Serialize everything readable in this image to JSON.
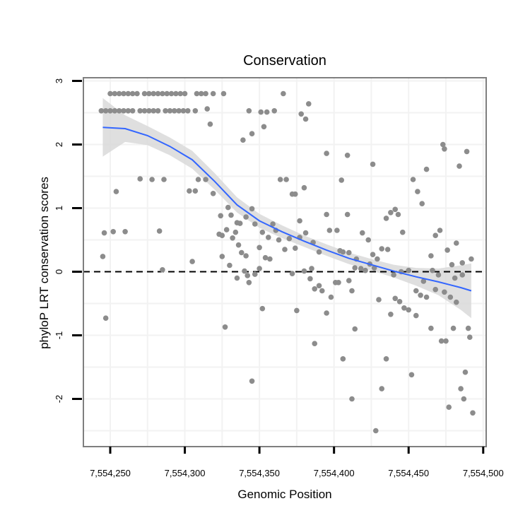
{
  "chart_data": {
    "type": "scatter",
    "title": "Conservation",
    "xlabel": "Genomic Position",
    "ylabel": "phyloP LRT conservation scores",
    "xlim": [
      7554232,
      7554502
    ],
    "ylim": [
      -2.75,
      3.05
    ],
    "x_ticks": [
      7554250,
      7554300,
      7554350,
      7554400,
      7554450,
      7554500
    ],
    "x_tick_labels": [
      "7,554,250",
      "7,554,300",
      "7,554,350",
      "7,554,400",
      "7,554,450",
      "7,554,500"
    ],
    "y_ticks": [
      3,
      2,
      1,
      0,
      -1,
      -2
    ],
    "y_tick_labels": [
      "3",
      "2",
      "1",
      "0",
      "-1",
      "-2"
    ],
    "grid": true,
    "reference_line": {
      "y": 0,
      "style": "dashed",
      "color": "#000000"
    },
    "colors": {
      "points": "#8c8c8c",
      "smooth": "#3366ff",
      "ribbon": "#d9d9d9",
      "grid": "#f2f2f2",
      "frame": "#7f7f7f"
    },
    "series": [
      {
        "name": "scores",
        "points": [
          [
            7554244,
            2.53
          ],
          [
            7554247,
            2.53
          ],
          [
            7554250,
            2.53
          ],
          [
            7554253,
            2.53
          ],
          [
            7554256,
            2.53
          ],
          [
            7554259,
            2.53
          ],
          [
            7554262,
            2.53
          ],
          [
            7554265,
            2.53
          ],
          [
            7554270,
            2.53
          ],
          [
            7554273,
            2.53
          ],
          [
            7554276,
            2.53
          ],
          [
            7554279,
            2.53
          ],
          [
            7554282,
            2.53
          ],
          [
            7554287,
            2.53
          ],
          [
            7554290,
            2.53
          ],
          [
            7554293,
            2.53
          ],
          [
            7554296,
            2.53
          ],
          [
            7554299,
            2.53
          ],
          [
            7554302,
            2.53
          ],
          [
            7554307,
            2.53
          ],
          [
            7554343,
            2.53
          ],
          [
            7554351,
            2.51
          ],
          [
            7554355,
            2.51
          ],
          [
            7554360,
            2.53
          ],
          [
            7554250,
            2.8
          ],
          [
            7554253,
            2.8
          ],
          [
            7554256,
            2.8
          ],
          [
            7554259,
            2.8
          ],
          [
            7554262,
            2.8
          ],
          [
            7554265,
            2.8
          ],
          [
            7554268,
            2.8
          ],
          [
            7554273,
            2.8
          ],
          [
            7554276,
            2.8
          ],
          [
            7554279,
            2.8
          ],
          [
            7554282,
            2.8
          ],
          [
            7554285,
            2.8
          ],
          [
            7554288,
            2.8
          ],
          [
            7554291,
            2.8
          ],
          [
            7554294,
            2.8
          ],
          [
            7554297,
            2.8
          ],
          [
            7554300,
            2.8
          ],
          [
            7554308,
            2.8
          ],
          [
            7554311,
            2.8
          ],
          [
            7554314,
            2.8
          ],
          [
            7554319,
            2.8
          ],
          [
            7554326,
            2.8
          ],
          [
            7554366,
            2.8
          ],
          [
            7554315,
            2.56
          ],
          [
            7554317,
            2.32
          ],
          [
            7554378,
            2.48
          ],
          [
            7554381,
            2.4
          ],
          [
            7554383,
            2.64
          ],
          [
            7554353,
            2.28
          ],
          [
            7554345,
            2.17
          ],
          [
            7554339,
            2.07
          ],
          [
            7554270,
            1.46
          ],
          [
            7554278,
            1.45
          ],
          [
            7554286,
            1.45
          ],
          [
            7554254,
            1.26
          ],
          [
            7554303,
            1.27
          ],
          [
            7554307,
            1.27
          ],
          [
            7554309,
            1.45
          ],
          [
            7554314,
            1.45
          ],
          [
            7554319,
            1.23
          ],
          [
            7554329,
            1.01
          ],
          [
            7554324,
            0.88
          ],
          [
            7554331,
            0.89
          ],
          [
            7554335,
            0.77
          ],
          [
            7554337,
            0.76
          ],
          [
            7554341,
            0.86
          ],
          [
            7554345,
            0.99
          ],
          [
            7554347,
            0.75
          ],
          [
            7554352,
            0.62
          ],
          [
            7554356,
            0.54
          ],
          [
            7554359,
            0.75
          ],
          [
            7554361,
            0.65
          ],
          [
            7554364,
            1.45
          ],
          [
            7554368,
            1.45
          ],
          [
            7554372,
            1.22
          ],
          [
            7554374,
            1.22
          ],
          [
            7554377,
            0.8
          ],
          [
            7554380,
            1.32
          ],
          [
            7554246,
            0.61
          ],
          [
            7554252,
            0.63
          ],
          [
            7554260,
            0.63
          ],
          [
            7554283,
            0.64
          ],
          [
            7554323,
            0.59
          ],
          [
            7554325,
            0.57
          ],
          [
            7554328,
            0.66
          ],
          [
            7554332,
            0.53
          ],
          [
            7554334,
            0.62
          ],
          [
            7554336,
            0.42
          ],
          [
            7554338,
            0.3
          ],
          [
            7554341,
            0.25
          ],
          [
            7554350,
            0.38
          ],
          [
            7554354,
            0.22
          ],
          [
            7554357,
            0.2
          ],
          [
            7554363,
            0.5
          ],
          [
            7554367,
            0.35
          ],
          [
            7554370,
            0.52
          ],
          [
            7554374,
            0.37
          ],
          [
            7554377,
            0.54
          ],
          [
            7554381,
            0.61
          ],
          [
            7554386,
            0.46
          ],
          [
            7554390,
            0.31
          ],
          [
            7554245,
            0.24
          ],
          [
            7554285,
            0.03
          ],
          [
            7554305,
            0.16
          ],
          [
            7554325,
            0.24
          ],
          [
            7554330,
            0.1
          ],
          [
            7554335,
            -0.1
          ],
          [
            7554340,
            0.01
          ],
          [
            7554342,
            -0.06
          ],
          [
            7554343,
            -0.17
          ],
          [
            7554347,
            -0.04
          ],
          [
            7554350,
            0.05
          ],
          [
            7554352,
            -0.58
          ],
          [
            7554372,
            -0.03
          ],
          [
            7554375,
            -0.61
          ],
          [
            7554380,
            0.01
          ],
          [
            7554384,
            -0.11
          ],
          [
            7554385,
            0.05
          ],
          [
            7554387,
            -0.27
          ],
          [
            7554390,
            -0.22
          ],
          [
            7554392,
            -0.3
          ],
          [
            7554395,
            -0.65
          ],
          [
            7554398,
            -0.4
          ],
          [
            7554401,
            -0.17
          ],
          [
            7554403,
            -0.17
          ],
          [
            7554404,
            0.33
          ],
          [
            7554406,
            0.31
          ],
          [
            7554410,
            -0.14
          ],
          [
            7554412,
            -0.3
          ],
          [
            7554414,
            0.06
          ],
          [
            7554247,
            -0.73
          ],
          [
            7554327,
            -0.87
          ],
          [
            7554345,
            -1.72
          ],
          [
            7554387,
            -1.13
          ],
          [
            7554406,
            -1.37
          ],
          [
            7554412,
            -2.0
          ],
          [
            7554414,
            -0.9
          ],
          [
            7554428,
            -2.5
          ],
          [
            7554430,
            -0.44
          ],
          [
            7554432,
            -1.84
          ],
          [
            7554435,
            -1.37
          ],
          [
            7554438,
            -0.67
          ],
          [
            7554441,
            -0.42
          ],
          [
            7554444,
            -0.47
          ],
          [
            7554447,
            -0.57
          ],
          [
            7554450,
            -0.6
          ],
          [
            7554452,
            -1.62
          ],
          [
            7554455,
            -0.69
          ],
          [
            7554458,
            -0.37
          ],
          [
            7554462,
            -0.4
          ],
          [
            7554465,
            -0.89
          ],
          [
            7554468,
            -0.28
          ],
          [
            7554472,
            -1.09
          ],
          [
            7554475,
            -1.09
          ],
          [
            7554477,
            -2.13
          ],
          [
            7554480,
            -0.89
          ],
          [
            7554482,
            -0.48
          ],
          [
            7554485,
            -1.84
          ],
          [
            7554487,
            -2.0
          ],
          [
            7554488,
            -1.58
          ],
          [
            7554490,
            -0.89
          ],
          [
            7554491,
            -1.03
          ],
          [
            7554493,
            -2.22
          ],
          [
            7554395,
            1.86
          ],
          [
            7554409,
            1.83
          ],
          [
            7554426,
            1.69
          ],
          [
            7554405,
            1.44
          ],
          [
            7554409,
            0.9
          ],
          [
            7554395,
            0.9
          ],
          [
            7554397,
            0.65
          ],
          [
            7554402,
            0.65
          ],
          [
            7554419,
            0.61
          ],
          [
            7554423,
            0.5
          ],
          [
            7554426,
            0.27
          ],
          [
            7554429,
            0.2
          ],
          [
            7554432,
            0.36
          ],
          [
            7554435,
            0.84
          ],
          [
            7554438,
            0.93
          ],
          [
            7554441,
            0.98
          ],
          [
            7554443,
            0.9
          ],
          [
            7554446,
            0.62
          ],
          [
            7554453,
            1.45
          ],
          [
            7554456,
            1.26
          ],
          [
            7554459,
            1.07
          ],
          [
            7554462,
            1.61
          ],
          [
            7554465,
            0.25
          ],
          [
            7554468,
            0.57
          ],
          [
            7554471,
            0.65
          ],
          [
            7554473,
            2.0
          ],
          [
            7554474,
            1.93
          ],
          [
            7554476,
            0.34
          ],
          [
            7554479,
            0.11
          ],
          [
            7554482,
            0.45
          ],
          [
            7554484,
            1.66
          ],
          [
            7554486,
            0.14
          ],
          [
            7554489,
            1.89
          ],
          [
            7554492,
            0.2
          ],
          [
            7554410,
            0.3
          ],
          [
            7554415,
            0.2
          ],
          [
            7554418,
            0.05
          ],
          [
            7554421,
            0.02
          ],
          [
            7554424,
            0.12
          ],
          [
            7554427,
            0.06
          ],
          [
            7554436,
            0.35
          ],
          [
            7554440,
            -0.05
          ],
          [
            7554445,
            0.0
          ],
          [
            7554450,
            0.02
          ],
          [
            7554455,
            -0.3
          ],
          [
            7554460,
            -0.15
          ],
          [
            7554466,
            0.02
          ],
          [
            7554470,
            -0.05
          ],
          [
            7554474,
            -0.32
          ],
          [
            7554478,
            -0.4
          ],
          [
            7554481,
            -0.1
          ],
          [
            7554486,
            -0.05
          ]
        ]
      },
      {
        "name": "smooth",
        "x": [
          7554245,
          7554260,
          7554275,
          7554290,
          7554305,
          7554320,
          7554335,
          7554350,
          7554365,
          7554380,
          7554395,
          7554410,
          7554425,
          7554440,
          7554455,
          7554470,
          7554485,
          7554492
        ],
        "y": [
          2.27,
          2.25,
          2.14,
          1.97,
          1.76,
          1.42,
          1.05,
          0.8,
          0.63,
          0.48,
          0.34,
          0.21,
          0.11,
          0.01,
          -0.08,
          -0.16,
          -0.25,
          -0.3
        ],
        "lower": [
          1.81,
          2.04,
          1.99,
          1.83,
          1.62,
          1.29,
          0.93,
          0.69,
          0.53,
          0.39,
          0.25,
          0.12,
          0.02,
          -0.09,
          -0.22,
          -0.37,
          -0.6,
          -0.73
        ],
        "upper": [
          2.73,
          2.46,
          2.29,
          2.11,
          1.9,
          1.55,
          1.17,
          0.91,
          0.73,
          0.57,
          0.43,
          0.3,
          0.2,
          0.11,
          0.06,
          0.05,
          0.1,
          0.13
        ]
      }
    ]
  }
}
